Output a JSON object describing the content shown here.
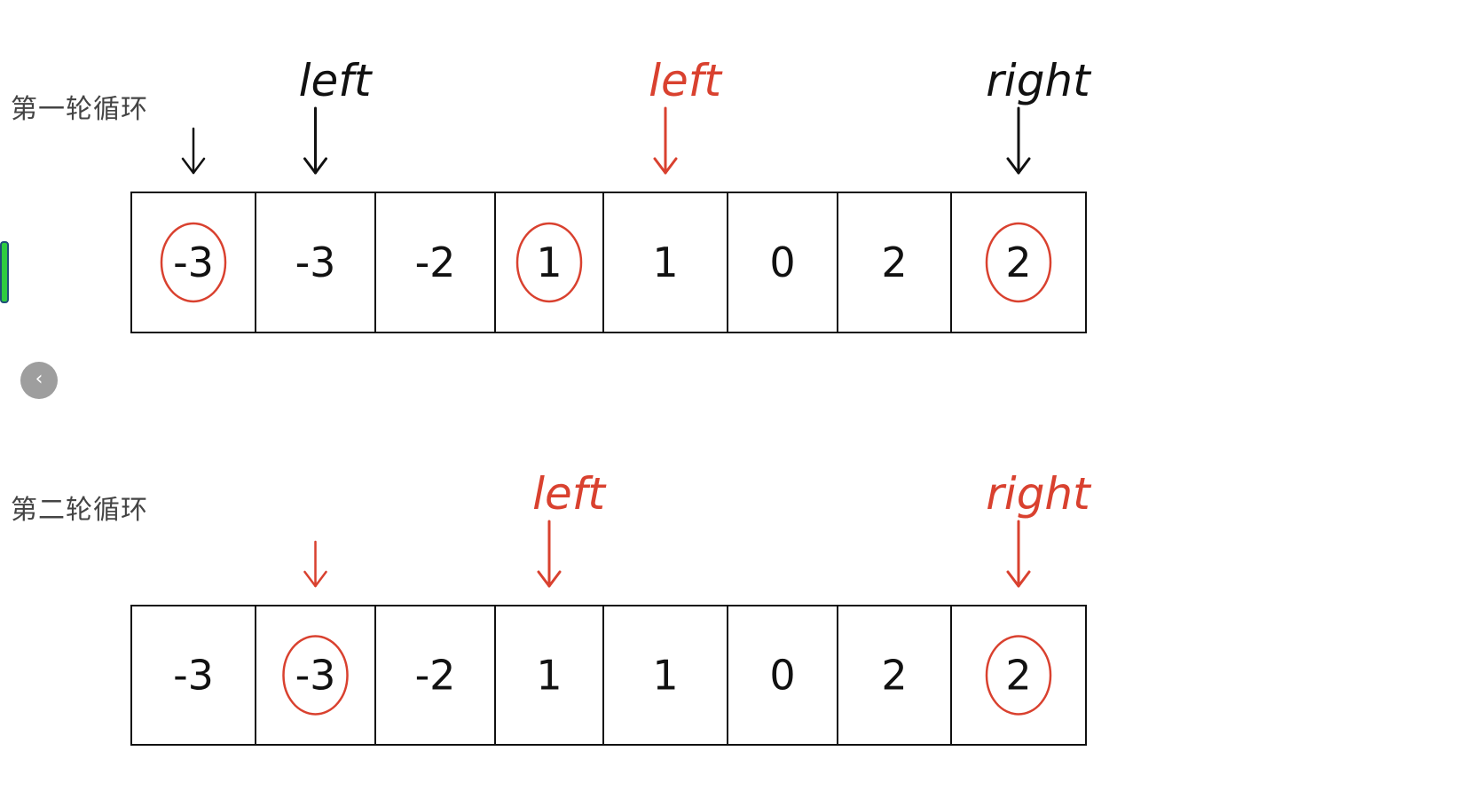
{
  "colors": {
    "ink_black": "#111111",
    "ink_red": "#d9412f",
    "label_gray": "#444444",
    "handle_green": "#2ecc40",
    "button_gray": "#9e9e9e"
  },
  "icons": {
    "collapse": "chevron-left-icon"
  },
  "controls": {
    "collapse_glyph": "‹"
  },
  "rounds": [
    {
      "label": "第一轮循环",
      "values": [
        "-3",
        "-3",
        "-2",
        "1",
        "1",
        "0",
        "2",
        "2"
      ],
      "circled": [
        {
          "index": 0,
          "color": "red"
        },
        {
          "index": 3,
          "color": "red"
        },
        {
          "index": 7,
          "color": "red"
        }
      ],
      "arrows": [
        {
          "index": 0,
          "color": "black",
          "text": ""
        },
        {
          "index": 1,
          "color": "black",
          "text": "left"
        },
        {
          "index": 4,
          "color": "red",
          "text": "left"
        },
        {
          "index": 7,
          "color": "black",
          "text": "right"
        }
      ]
    },
    {
      "label": "第二轮循环",
      "values": [
        "-3",
        "-3",
        "-2",
        "1",
        "1",
        "0",
        "2",
        "2"
      ],
      "circled": [
        {
          "index": 1,
          "color": "red"
        },
        {
          "index": 7,
          "color": "red"
        }
      ],
      "arrows": [
        {
          "index": 1,
          "color": "red",
          "text": ""
        },
        {
          "index": 3,
          "color": "red",
          "text": "left"
        },
        {
          "index": 7,
          "color": "red",
          "text": "right"
        }
      ]
    }
  ]
}
